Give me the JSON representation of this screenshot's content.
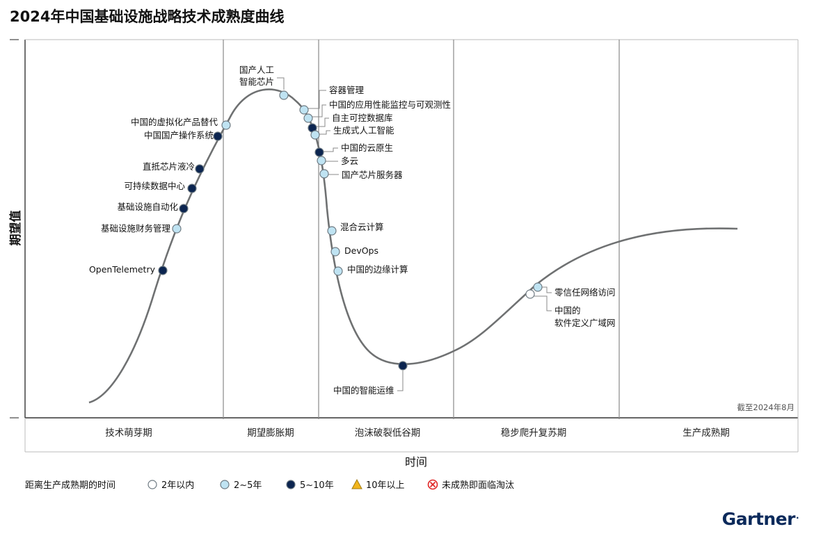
{
  "title": "2024年中国基础设施战略技术成熟度曲线",
  "brand": "Gartner",
  "brand_mark": ".",
  "chart_data": {
    "type": "scatter",
    "xlabel": "时间",
    "ylabel": "期望值",
    "note": "截至2024年8月",
    "phases": [
      "技术萌芽期",
      "期望膨胀期",
      "泡沫破裂低谷期",
      "稳步爬升复苏期",
      "生产成熟期"
    ],
    "legend": {
      "title": "距离生产成熟期的时间",
      "items": [
        {
          "key": "lt2",
          "label": "2年以内",
          "symbol": "circle",
          "fill": "#ffffff"
        },
        {
          "key": "2to5",
          "label": "2~5年",
          "symbol": "circle",
          "fill": "#bfe3f2"
        },
        {
          "key": "5to10",
          "label": "5~10年",
          "symbol": "circle",
          "fill": "#0c2550"
        },
        {
          "key": "gt10",
          "label": "10年以上",
          "symbol": "triangle",
          "fill": "#f2b51c"
        },
        {
          "key": "obsolete",
          "label": "未成熟即面临淘汰",
          "symbol": "x-circle",
          "fill": "#e02626"
        }
      ]
    },
    "technologies": [
      {
        "name": "OpenTelemetry",
        "phase": "技术萌芽期",
        "category": "5~10年"
      },
      {
        "name": "基础设施财务管理",
        "phase": "技术萌芽期",
        "category": "2~5年"
      },
      {
        "name": "基础设施自动化",
        "phase": "技术萌芽期",
        "category": "5~10年"
      },
      {
        "name": "可持续数据中心",
        "phase": "技术萌芽期",
        "category": "5~10年"
      },
      {
        "name": "直抵芯片液冷",
        "phase": "技术萌芽期",
        "category": "5~10年"
      },
      {
        "name": "中国国产操作系统",
        "phase": "期望膨胀期",
        "category": "5~10年"
      },
      {
        "name": "中国的虚拟化产品替代",
        "phase": "期望膨胀期",
        "category": "2~5年"
      },
      {
        "name": "国产人工\n智能芯片",
        "phase": "期望膨胀期",
        "category": "2~5年"
      },
      {
        "name": "容器管理",
        "phase": "期望膨胀期",
        "category": "2~5年"
      },
      {
        "name": "中国的应用性能监控与可观测性",
        "phase": "期望膨胀期",
        "category": "2~5年"
      },
      {
        "name": "自主可控数据库",
        "phase": "泡沫破裂低谷期",
        "category": "5~10年"
      },
      {
        "name": "生成式人工智能",
        "phase": "泡沫破裂低谷期",
        "category": "2~5年"
      },
      {
        "name": "中国的云原生",
        "phase": "泡沫破裂低谷期",
        "category": "5~10年"
      },
      {
        "name": "多云",
        "phase": "泡沫破裂低谷期",
        "category": "2~5年"
      },
      {
        "name": "国产芯片服务器",
        "phase": "泡沫破裂低谷期",
        "category": "2~5年"
      },
      {
        "name": "混合云计算",
        "phase": "泡沫破裂低谷期",
        "category": "2~5年"
      },
      {
        "name": "DevOps",
        "phase": "泡沫破裂低谷期",
        "category": "2~5年"
      },
      {
        "name": "中国的边缘计算",
        "phase": "泡沫破裂低谷期",
        "category": "2~5年"
      },
      {
        "name": "中国的智能运维",
        "phase": "泡沫破裂低谷期",
        "category": "5~10年"
      },
      {
        "name": "零信任网络访问",
        "phase": "稳步爬升复苏期",
        "category": "2~5年"
      },
      {
        "name": "中国的\n软件定义广域网",
        "phase": "稳步爬升复苏期",
        "category": "2年以内"
      }
    ]
  }
}
